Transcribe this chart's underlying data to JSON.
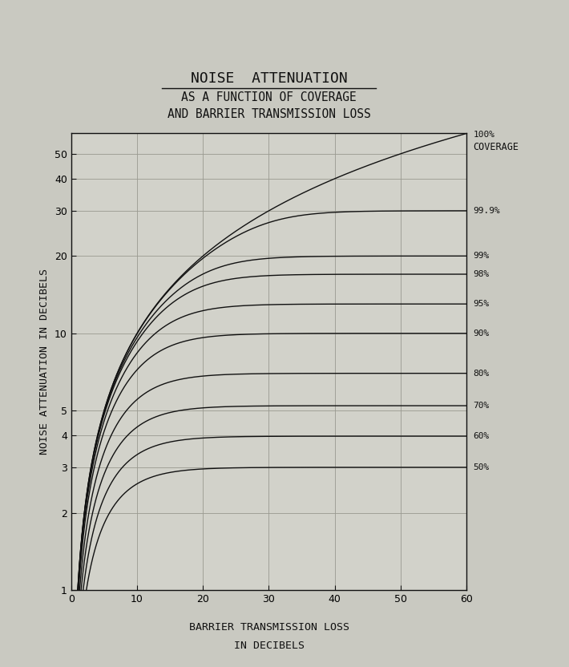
{
  "title_line1": "NOISE  ATTENUATION",
  "title_line2": "AS A FUNCTION OF COVERAGE",
  "title_line3": "AND BARRIER TRANSMISSION LOSS",
  "xlabel_line1": "BARRIER TRANSMISSION LOSS",
  "xlabel_line2": "IN DECIBELS",
  "ylabel": "NOISE ATTENUATION IN DECIBELS",
  "coverage_label": "COVERAGE",
  "coverages": [
    50,
    60,
    70,
    80,
    90,
    95,
    98,
    99,
    99.9,
    100
  ],
  "coverage_labels": [
    "50%",
    "60%",
    "70%",
    "80%",
    "90%",
    "95%",
    "98%",
    "99%",
    "99.9%",
    "100%"
  ],
  "xlim_min": 0,
  "xlim_max": 60,
  "ylim_min": 1,
  "ylim_max": 60,
  "background_color": "#c9c9c1",
  "plot_bg_color": "#d2d2ca",
  "line_color": "#111111",
  "grid_color": "#999990",
  "title_fontsize": 13,
  "subtitle_fontsize": 10.5,
  "label_fontsize": 9.5,
  "tick_fontsize": 9
}
